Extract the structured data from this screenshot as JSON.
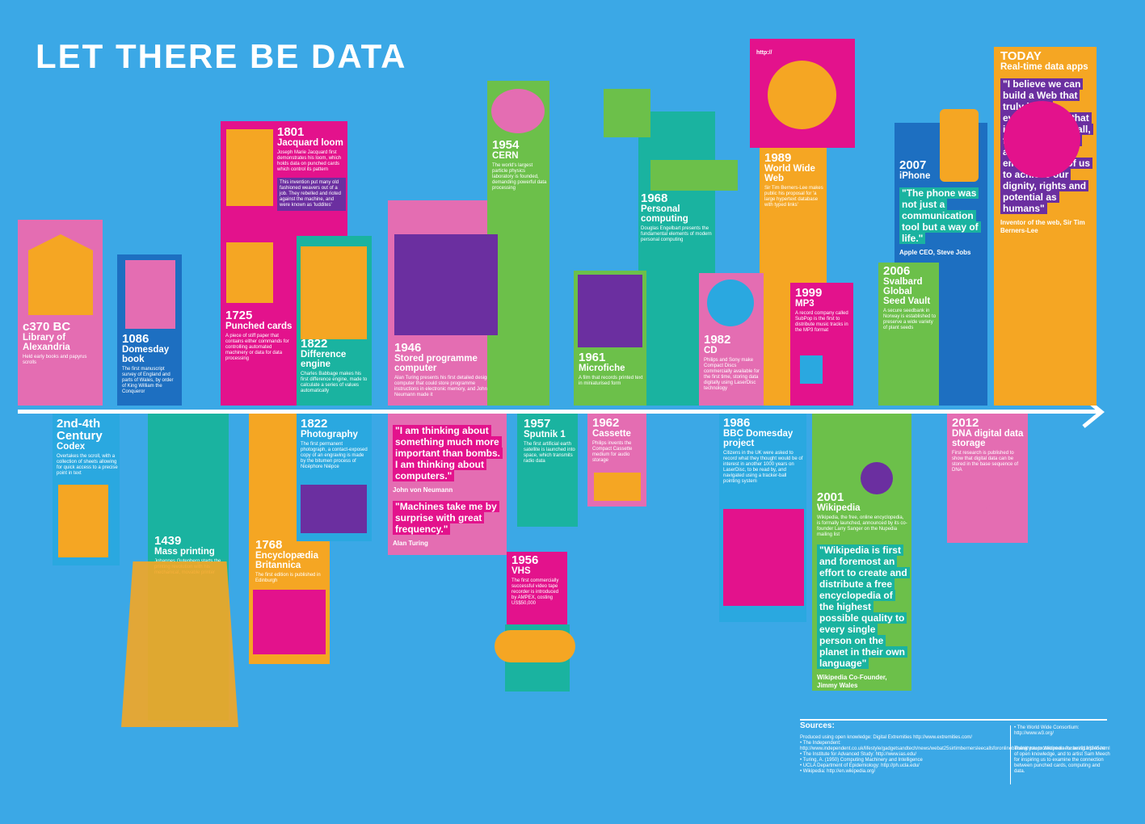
{
  "title": "LET THERE BE DATA",
  "events": [
    {
      "year": "c370 BC",
      "name": "Library of Alexandria",
      "description": "Held early books and papyrus scrolls"
    },
    {
      "year": "1086",
      "name": "Domesday book",
      "description": "The first manuscript survey of England and parts of Wales, by order of King William the Conqueror"
    },
    {
      "year": "1801",
      "name": "Jacquard loom",
      "description": "Joseph Marie Jacquard first demonstrates his loom, which holds data on punched cards which control its pattern",
      "note": "This invention put many old fashioned weavers out of a job. They rebelled and rioted against the machine, and were known as 'luddites'"
    },
    {
      "year": "1725",
      "name": "Punched cards",
      "description": "A piece of stiff paper that contains either commands for controlling automated machinery or data for data processing"
    },
    {
      "year": "1822",
      "name": "Difference engine",
      "description": "Charles Babbage makes his first difference engine, made to calculate a series of values automatically"
    },
    {
      "year": "1946",
      "name": "Stored programme computer",
      "description": "Alan Turing presents his first detailed design of a computer that could store programme instructions in electronic memory, and John von Neumann made it"
    },
    {
      "year": "1954",
      "name": "CERN",
      "description": "The world's largest particle physics laboratory is founded, demanding powerful data processing"
    },
    {
      "year": "1961",
      "name": "Microfiche",
      "description": "A film that records printed text in miniaturised form"
    },
    {
      "year": "1968",
      "name": "Personal computing",
      "description": "Douglas Engelbart presents the fundamental elements of modern personal computing"
    },
    {
      "year": "1982",
      "name": "CD",
      "description": "Philips and Sony make Compact Discs commercially available for the first time, storing data digitally using LaserDisc technology"
    },
    {
      "year": "1989",
      "name": "World Wide Web",
      "description": "Sir Tim Berners-Lee makes public his proposal for 'a large hypertext database with typed links'"
    },
    {
      "year": "1999",
      "name": "MP3",
      "description": "A record company called SubPop is the first to distribute music tracks in the MP3 format"
    },
    {
      "year": "2006",
      "name": "Svalbard Global Seed Vault",
      "description": "A secure seedbank in Norway is established to preserve a wide variety of plant seeds"
    },
    {
      "year": "2007",
      "name": "iPhone",
      "quotes": [
        {
          "text": "\"The phone was not just a communication tool but a way of life.\"",
          "attribution": "Apple CEO, Steve Jobs"
        }
      ]
    },
    {
      "year": "TODAY",
      "name": "Real-time data apps",
      "quotes": [
        {
          "text": "\"I believe we can build a Web that truly is for everyone: one that is accessible to all, from any device, and one that empowers all of us to achieve our dignity, rights and potential as humans\"",
          "attribution": "Inventor of the web, Sir Tim Berners-Lee"
        }
      ]
    },
    {
      "year": "2nd-4th Century",
      "name": "Codex",
      "description": "Overtakes the scroll, with a collection of sheets allowing for quick access to a precise point in text"
    },
    {
      "year": "1439",
      "name": "Mass printing",
      "description": "Johannes Gutenberg starts the printing revolution with his mechanical, movable printer"
    },
    {
      "year": "1768",
      "name": "Encyclopædia Britannica",
      "description": "The first edition is published in Edinburgh"
    },
    {
      "year": "1822",
      "name": "Photography",
      "description": "The first permanent photograph, a contact-exposed copy of an engraving is made by the bitumen process of Nicéphore Niépce"
    },
    {
      "quotes": [
        {
          "text": "\"I am thinking about something much more important than bombs. I am thinking about computers.\"",
          "attribution": "John von Neumann"
        },
        {
          "text": "\"Machines take me by surprise with great frequency.\"",
          "attribution": "Alan Turing"
        }
      ]
    },
    {
      "year": "1957",
      "name": "Sputnik 1",
      "description": "The first artificial earth satellite is launched into space, which transmits radio data"
    },
    {
      "year": "1956",
      "name": "VHS",
      "description": "The first commercially successful video tape recorder is introduced by AMPEX, costing US$50,000"
    },
    {
      "year": "1962",
      "name": "Cassette",
      "description": "Philips invents the Compact Cassette medium for audio storage"
    },
    {
      "year": "1986",
      "name": "BBC Domesday project",
      "description": "Citizens in the UK were asked to record what they thought would be of interest in another 1000 years on LaserDisc, to be read by, and navigated using a tracker-ball pointing system"
    },
    {
      "year": "2001",
      "name": "Wikipedia",
      "description": "Wikipedia, the free, online encyclopedia, is formally launched, announced by its co-founder Larry Sanger on the Nupedia mailing list",
      "quotes": [
        {
          "text": "\"Wikipedia is first and foremost an effort to create and distribute a free encyclopedia of the highest possible quality to every single person on the planet in their own language\"",
          "attribution": "Wikipedia Co-Founder, Jimmy Wales"
        }
      ]
    },
    {
      "year": "2012",
      "name": "DNA digital data storage",
      "description": "First research is published to show that digital data can be stored in the base sequence of DNA"
    }
  ],
  "sources": {
    "heading": "Sources:",
    "left": [
      "Produced using open knowledge: Digital Extremities http://www.extremities.com/",
      "• The Independent: http://www.independent.co.uk/lifestyle/gadgetsandtech/news/webat25sirtimbernersleecallsforonlinebillofrightstoprotectinternetusers9186345.html",
      "• The Institute for Advanced Study: http://www.ias.edu/",
      "• Turing, A. (1950) Computing Machinery and Intelligence",
      "• UCLA Department of Epidemiology: http://ph.ucla.edu/",
      "• Wikipedia: http://en.wikipedia.org/"
    ],
    "right": [
      "• The World Wide Consortium: http://www.w3.org/",
      "Thank you to Wikipedia for being a pioneer of open knowledge, and to artist Sam Meech for inspiring us to examine the connection between punched cards, computing and data."
    ]
  },
  "web_label": "http://"
}
